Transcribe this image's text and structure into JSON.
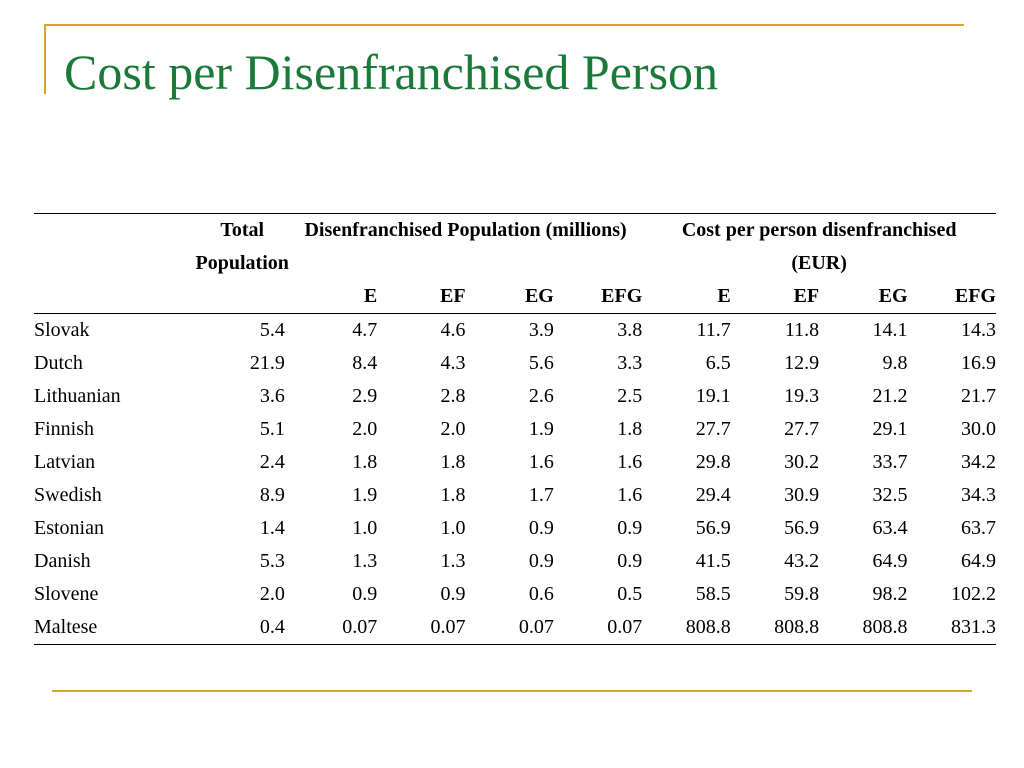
{
  "slide": {
    "title": "Cost per Disenfranchised Person"
  },
  "table": {
    "group_headers": {
      "total": "Total Population",
      "disenfranchised": "Disenfranchised Population (millions)",
      "cost": "Cost per person disenfranchised (EUR)"
    },
    "sub_headers": [
      "E",
      "EF",
      "EG",
      "EFG",
      "E",
      "EF",
      "EG",
      "EFG"
    ],
    "rows": [
      {
        "lang": "Slovak",
        "total": "5.4",
        "vals": [
          "4.7",
          "4.6",
          "3.9",
          "3.8",
          "11.7",
          "11.8",
          "14.1",
          "14.3"
        ]
      },
      {
        "lang": "Dutch",
        "total": "21.9",
        "vals": [
          "8.4",
          "4.3",
          "5.6",
          "3.3",
          "6.5",
          "12.9",
          "9.8",
          "16.9"
        ]
      },
      {
        "lang": "Lithuanian",
        "total": "3.6",
        "vals": [
          "2.9",
          "2.8",
          "2.6",
          "2.5",
          "19.1",
          "19.3",
          "21.2",
          "21.7"
        ]
      },
      {
        "lang": "Finnish",
        "total": "5.1",
        "vals": [
          "2.0",
          "2.0",
          "1.9",
          "1.8",
          "27.7",
          "27.7",
          "29.1",
          "30.0"
        ]
      },
      {
        "lang": "Latvian",
        "total": "2.4",
        "vals": [
          "1.8",
          "1.8",
          "1.6",
          "1.6",
          "29.8",
          "30.2",
          "33.7",
          "34.2"
        ]
      },
      {
        "lang": "Swedish",
        "total": "8.9",
        "vals": [
          "1.9",
          "1.8",
          "1.7",
          "1.6",
          "29.4",
          "30.9",
          "32.5",
          "34.3"
        ]
      },
      {
        "lang": "Estonian",
        "total": "1.4",
        "vals": [
          "1.0",
          "1.0",
          "0.9",
          "0.9",
          "56.9",
          "56.9",
          "63.4",
          "63.7"
        ]
      },
      {
        "lang": "Danish",
        "total": "5.3",
        "vals": [
          "1.3",
          "1.3",
          "0.9",
          "0.9",
          "41.5",
          "43.2",
          "64.9",
          "64.9"
        ]
      },
      {
        "lang": "Slovene",
        "total": "2.0",
        "vals": [
          "0.9",
          "0.9",
          "0.6",
          "0.5",
          "58.5",
          "59.8",
          "98.2",
          "102.2"
        ]
      },
      {
        "lang": "Maltese",
        "total": "0.4",
        "vals": [
          "0.07",
          "0.07",
          "0.07",
          "0.07",
          "808.8",
          "808.8",
          "808.8",
          "831.3"
        ]
      }
    ]
  },
  "colors": {
    "title": "#1a7a3a",
    "accent_rule": "#d4a62a"
  }
}
